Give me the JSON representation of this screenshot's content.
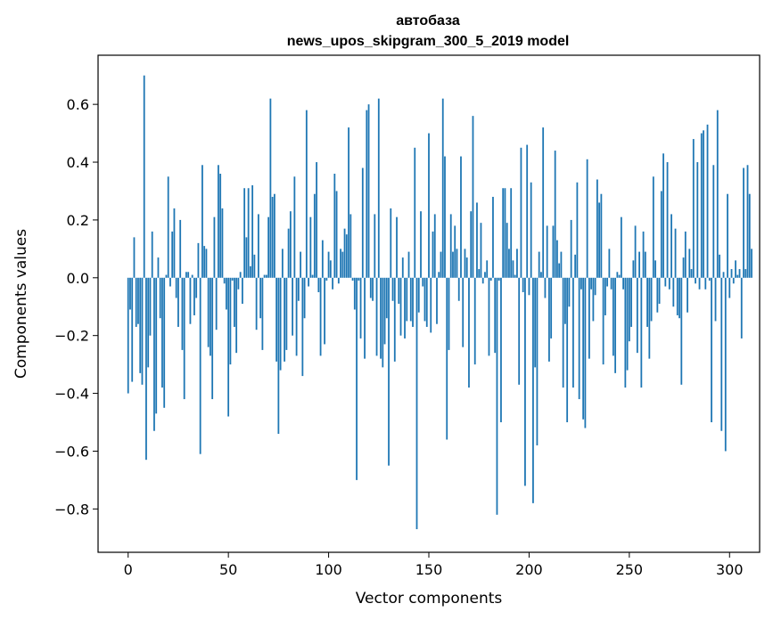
{
  "chart_data": {
    "type": "bar",
    "title": "автобаза",
    "subtitle": "news_upos_skipgram_300_5_2019 model",
    "xlabel": "Vector components",
    "ylabel": "Components values",
    "xlim": [
      -15,
      315
    ],
    "ylim": [
      -0.95,
      0.77
    ],
    "x_ticks": [
      {
        "value": 0,
        "label": "0"
      },
      {
        "value": 50,
        "label": "50"
      },
      {
        "value": 100,
        "label": "100"
      },
      {
        "value": 150,
        "label": "150"
      },
      {
        "value": 200,
        "label": "200"
      },
      {
        "value": 250,
        "label": "250"
      },
      {
        "value": 300,
        "label": "300"
      }
    ],
    "y_ticks": [
      {
        "value": 0.6,
        "label": "0.6"
      },
      {
        "value": 0.4,
        "label": "0.4"
      },
      {
        "value": 0.2,
        "label": "0.2"
      },
      {
        "value": 0.0,
        "label": "0.0"
      },
      {
        "value": -0.2,
        "label": "−0.2"
      },
      {
        "value": -0.4,
        "label": "−0.4"
      },
      {
        "value": -0.6,
        "label": "−0.6"
      },
      {
        "value": -0.8,
        "label": "−0.8"
      }
    ],
    "grid": false,
    "bar_color": "#1f77b4",
    "values": [
      -0.4,
      -0.11,
      -0.36,
      0.14,
      -0.17,
      -0.16,
      -0.33,
      -0.37,
      0.7,
      -0.63,
      -0.31,
      -0.2,
      0.16,
      -0.53,
      -0.47,
      0.07,
      -0.14,
      -0.38,
      -0.45,
      0.01,
      0.35,
      -0.03,
      0.16,
      0.24,
      -0.07,
      -0.17,
      0.2,
      -0.25,
      -0.42,
      0.02,
      0.02,
      -0.16,
      0.01,
      -0.13,
      -0.07,
      0.12,
      -0.61,
      0.39,
      0.11,
      0.1,
      -0.24,
      -0.27,
      -0.42,
      0.21,
      -0.18,
      0.39,
      0.36,
      0.24,
      -0.02,
      -0.11,
      -0.48,
      -0.3,
      -0.01,
      -0.17,
      -0.26,
      -0.04,
      0.02,
      -0.09,
      0.31,
      0.14,
      0.31,
      0.04,
      0.32,
      0.08,
      -0.18,
      0.22,
      -0.14,
      -0.25,
      0.01,
      0.01,
      0.21,
      0.62,
      0.28,
      0.29,
      -0.29,
      -0.54,
      -0.32,
      0.1,
      -0.29,
      -0.25,
      0.17,
      0.23,
      -0.2,
      0.35,
      -0.27,
      -0.08,
      0.09,
      -0.34,
      -0.14,
      0.58,
      -0.03,
      0.21,
      0.01,
      0.29,
      0.4,
      -0.05,
      -0.27,
      0.13,
      -0.23,
      -0.01,
      0.09,
      0.06,
      -0.04,
      0.36,
      0.3,
      -0.02,
      0.1,
      0.09,
      0.17,
      0.15,
      0.52,
      0.22,
      -0.01,
      -0.11,
      -0.7,
      -0.01,
      -0.21,
      0.38,
      -0.28,
      0.58,
      0.6,
      -0.07,
      -0.08,
      0.22,
      -0.27,
      0.62,
      -0.28,
      -0.31,
      -0.23,
      -0.14,
      -0.65,
      0.24,
      -0.08,
      -0.29,
      0.21,
      -0.09,
      -0.2,
      0.07,
      -0.21,
      -0.15,
      0.09,
      -0.15,
      -0.17,
      0.45,
      -0.87,
      -0.12,
      0.23,
      -0.03,
      -0.15,
      -0.17,
      0.5,
      -0.19,
      0.16,
      0.22,
      -0.16,
      0.02,
      0.09,
      0.62,
      0.42,
      -0.56,
      -0.25,
      0.22,
      0.09,
      0.18,
      0.1,
      -0.08,
      0.42,
      -0.24,
      0.1,
      0.07,
      -0.38,
      0.23,
      0.56,
      -0.3,
      0.26,
      0.03,
      0.19,
      -0.02,
      0.02,
      0.06,
      -0.27,
      -0.01,
      0.28,
      -0.26,
      -0.82,
      -0.01,
      -0.5,
      0.31,
      0.31,
      0.19,
      0.1,
      0.31,
      0.06,
      0.01,
      0.1,
      -0.37,
      0.45,
      -0.05,
      -0.72,
      0.46,
      -0.06,
      0.33,
      -0.78,
      -0.31,
      -0.58,
      0.09,
      0.02,
      0.52,
      -0.07,
      0.18,
      -0.29,
      -0.21,
      0.18,
      0.44,
      0.13,
      0.05,
      0.09,
      -0.38,
      -0.16,
      -0.5,
      -0.1,
      0.2,
      -0.38,
      0.08,
      0.33,
      -0.42,
      -0.04,
      -0.49,
      -0.52,
      0.41,
      -0.28,
      -0.04,
      -0.15,
      -0.06,
      0.34,
      0.26,
      0.29,
      -0.3,
      -0.13,
      -0.03,
      0.1,
      -0.04,
      -0.27,
      -0.33,
      0.02,
      0.01,
      0.21,
      -0.04,
      -0.38,
      -0.32,
      -0.22,
      -0.17,
      0.06,
      0.18,
      -0.26,
      0.09,
      -0.38,
      0.16,
      0.09,
      -0.17,
      -0.28,
      -0.15,
      0.35,
      0.06,
      -0.12,
      -0.09,
      0.3,
      0.43,
      -0.03,
      0.4,
      -0.04,
      0.22,
      -0.1,
      0.17,
      -0.13,
      -0.14,
      -0.37,
      0.07,
      0.16,
      -0.12,
      0.1,
      0.03,
      0.48,
      -0.02,
      0.4,
      -0.04,
      0.5,
      0.51,
      -0.04,
      0.53,
      -0.01,
      -0.5,
      0.39,
      -0.15,
      0.58,
      0.08,
      -0.53,
      0.02,
      -0.6,
      0.29,
      -0.07,
      0.03,
      -0.02,
      0.06,
      0.01,
      0.03,
      -0.21,
      0.38,
      0.03,
      0.39,
      0.29,
      0.1
    ]
  }
}
